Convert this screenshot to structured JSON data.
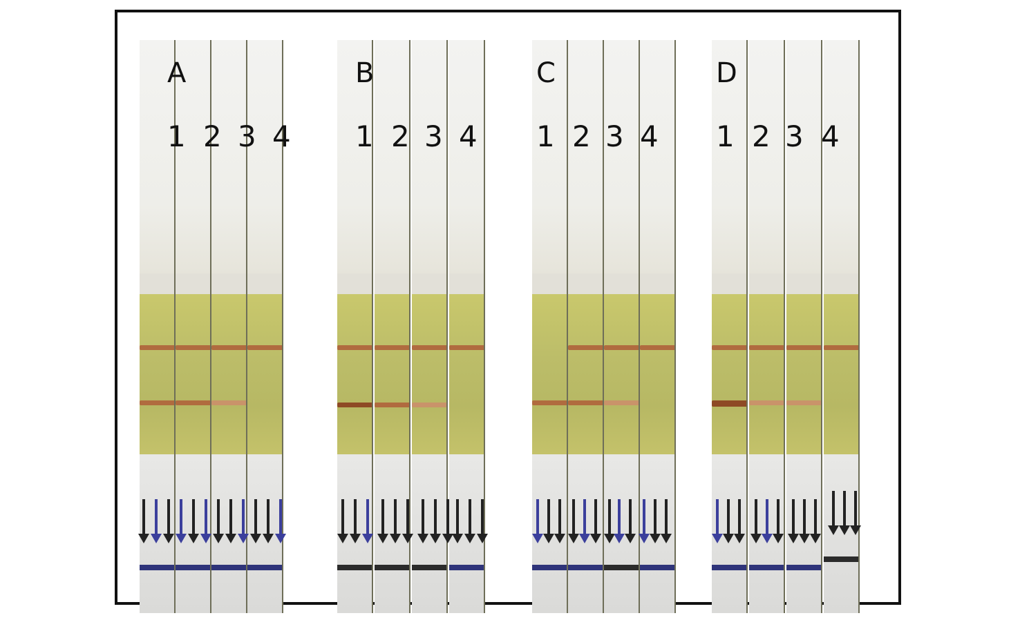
{
  "figure": {
    "panels": [
      {
        "label": "A",
        "lanes": [
          "1",
          "2",
          "3",
          "4"
        ]
      },
      {
        "label": "B",
        "lanes": [
          "1",
          "2",
          "3",
          "4"
        ]
      },
      {
        "label": "C",
        "lanes": [
          "1",
          "2",
          "3",
          "4"
        ]
      },
      {
        "label": "D",
        "lanes": [
          "1",
          "2",
          "3",
          "4"
        ]
      }
    ]
  },
  "colors": {
    "frame": "#111111",
    "strip_top": "#eeeee9",
    "strip_green": "#bcbd69",
    "band_color": "#b06b3f",
    "marker_blue": "#2f347a",
    "arrow": "#222222"
  }
}
